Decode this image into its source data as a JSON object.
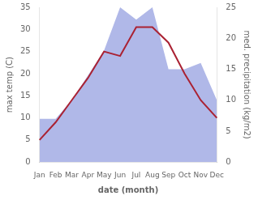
{
  "chart_data": {
    "type": "line",
    "categories": [
      "Jan",
      "Feb",
      "Mar",
      "Apr",
      "May",
      "Jun",
      "Jul",
      "Aug",
      "Sep",
      "Oct",
      "Nov",
      "Dec"
    ],
    "series": [
      {
        "name": "med. precipitation",
        "type": "area",
        "axis": "y2",
        "color": "#b0b8e8",
        "values": [
          7,
          7,
          10,
          14,
          18,
          25,
          23,
          25,
          15,
          15,
          16,
          10
        ]
      },
      {
        "name": "max temp",
        "type": "line",
        "color": "#aa2233",
        "values": [
          5,
          9,
          14,
          19,
          25,
          24,
          30.5,
          30.5,
          27,
          20,
          14,
          10
        ]
      }
    ],
    "xlabel": "date (month)",
    "ylabel": "max temp (C)",
    "y2label": "med. precipitation (kg/m2)",
    "ylim": [
      0,
      35
    ],
    "yticks": [
      0,
      5,
      10,
      15,
      20,
      25,
      30,
      35
    ],
    "y2lim": [
      0,
      25
    ],
    "y2ticks": [
      0,
      5,
      10,
      15,
      20,
      25
    ],
    "grid": false
  }
}
